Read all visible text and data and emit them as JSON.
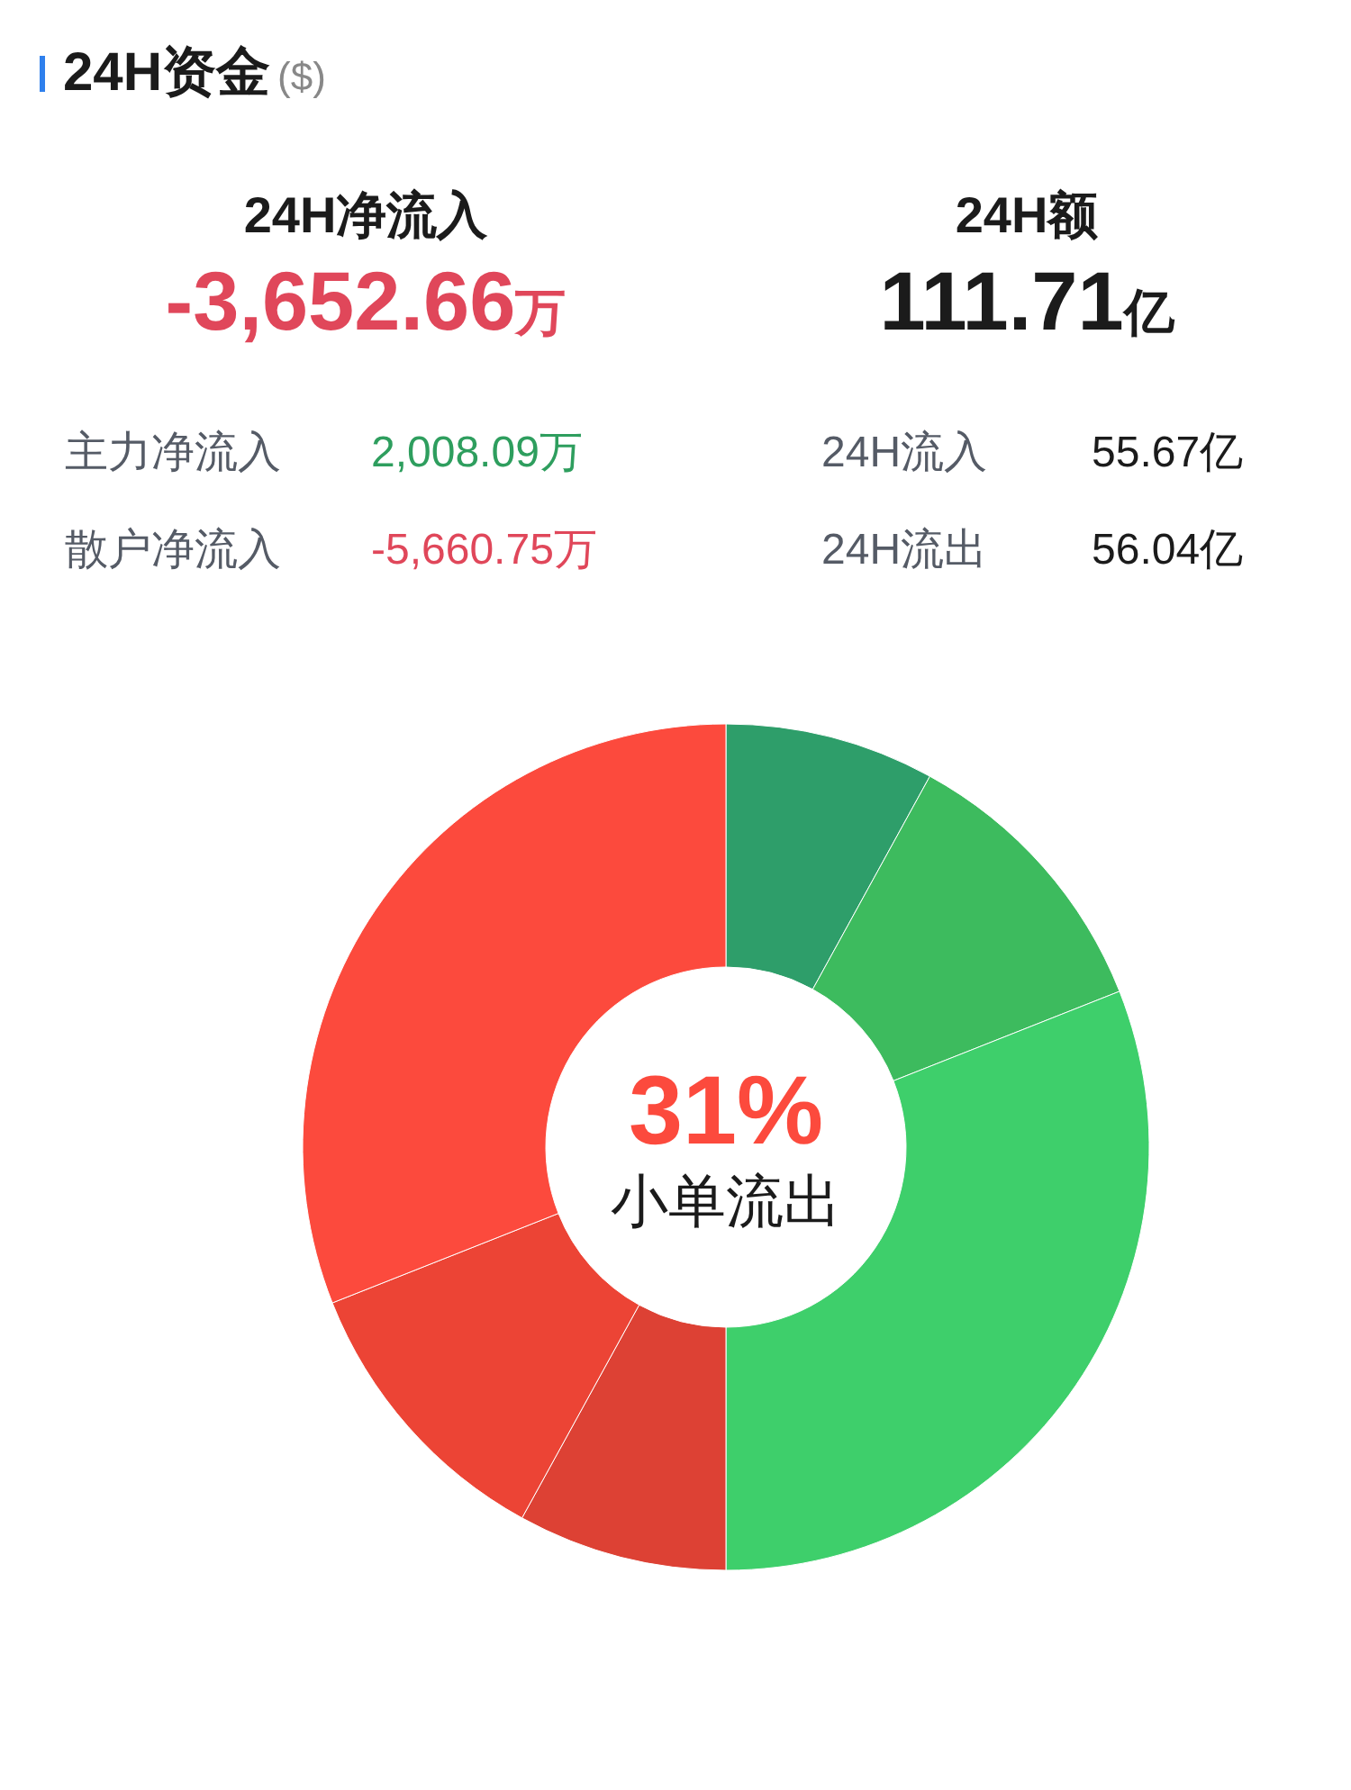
{
  "chart_data": [
    {
      "type": "other",
      "title": "24H资金",
      "subtitle": "($)",
      "annotations": [
        "24H净流入",
        "-3,652.66万",
        "24H额",
        "111.71亿",
        "主力净流入",
        "2,008.09万",
        "24H流入",
        "55.67亿",
        "散户净流入",
        "-5,660.75万",
        "24H流出",
        "56.04亿"
      ],
      "colors": [
        "#1b1b1b",
        "#e0475a",
        "#1b1b1b",
        "#1b1b1b",
        "#555b66",
        "#2e9e5e",
        "#555b66",
        "#1b1b1b",
        "#555b66",
        "#e0475a",
        "#555b66",
        "#1b1b1b"
      ]
    },
    {
      "type": "donut",
      "categories": [
        null,
        null,
        null,
        null,
        null,
        "小单流出"
      ],
      "values": [
        8,
        11,
        31,
        8,
        11,
        31
      ],
      "colors": [
        "#2e9e6a",
        "#3dbb5e",
        "#3ecf6b",
        "#dd4134",
        "#ec4435",
        "#fc4a3d"
      ],
      "value_labels": [
        null,
        null,
        null,
        null,
        null,
        "31%"
      ],
      "legend": false
    }
  ]
}
